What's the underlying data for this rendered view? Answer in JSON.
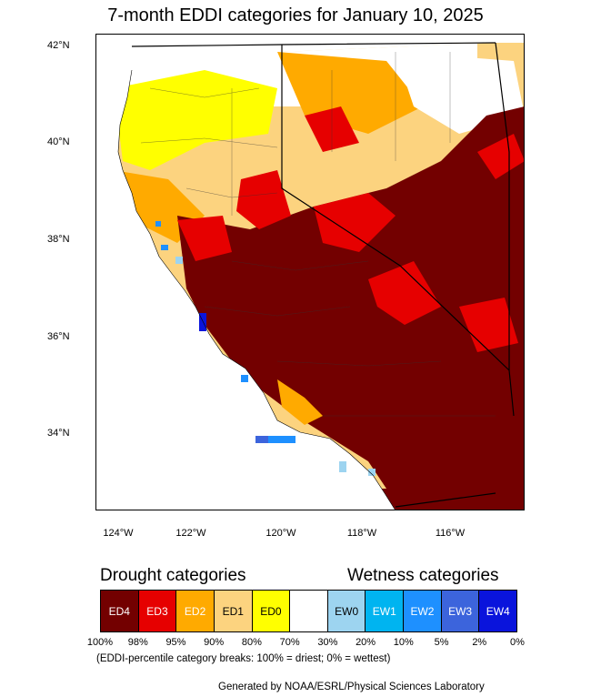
{
  "title": "7-month EDDI categories for January 10, 2025",
  "lat_labels": [
    "42°N",
    "40°N",
    "38°N",
    "36°N",
    "34°N"
  ],
  "lon_labels": [
    "124°W",
    "122°W",
    "120°W",
    "118°W",
    "116°W"
  ],
  "legend": {
    "drought_heading": "Drought categories",
    "wetness_heading": "Wetness categories",
    "categories": [
      {
        "label": "ED4",
        "color": "#730000"
      },
      {
        "label": "ED3",
        "color": "#e60000"
      },
      {
        "label": "ED2",
        "color": "#ffaa00"
      },
      {
        "label": "ED1",
        "color": "#fcd37f"
      },
      {
        "label": "ED0",
        "color": "#ffff00"
      },
      {
        "label": "",
        "color": "#ffffff"
      },
      {
        "label": "EW0",
        "color": "#9dd4f0"
      },
      {
        "label": "EW1",
        "color": "#00b4f0"
      },
      {
        "label": "EW2",
        "color": "#1e90ff"
      },
      {
        "label": "EW3",
        "color": "#3c64dc"
      },
      {
        "label": "EW4",
        "color": "#0a14dc"
      }
    ],
    "breaks": [
      "100%",
      "98%",
      "95%",
      "90%",
      "80%",
      "70%",
      "30%",
      "20%",
      "10%",
      "5%",
      "2%",
      "0%"
    ]
  },
  "note": "(EDDI-percentile category breaks: 100% = driest; 0% = wettest)",
  "credit": "Generated by NOAA/ESRL/Physical Sciences Laboratory"
}
